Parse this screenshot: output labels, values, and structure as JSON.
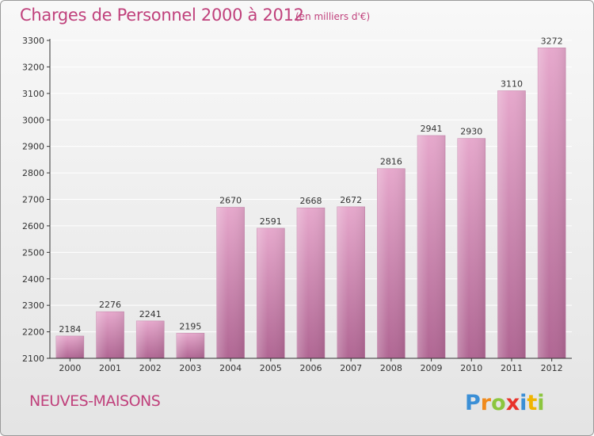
{
  "header": {
    "title": "Charges de Personnel 2000 à 2012",
    "subtitle": "(en milliers d'€)"
  },
  "footer": {
    "commune": "NEUVES-MAISONS",
    "brand": "Proxiti"
  },
  "colors": {
    "bar_top": "#e6a8cc",
    "bar_bottom": "#b06693",
    "title": "#c0417c",
    "axis": "#333333",
    "grid": "#ffffff"
  },
  "chart_data": {
    "type": "bar",
    "categories": [
      "2000",
      "2001",
      "2002",
      "2003",
      "2004",
      "2005",
      "2006",
      "2007",
      "2008",
      "2009",
      "2010",
      "2011",
      "2012"
    ],
    "values": [
      2184,
      2276,
      2241,
      2195,
      2670,
      2591,
      2668,
      2672,
      2816,
      2941,
      2930,
      3110,
      3272
    ],
    "title": "Charges de Personnel 2000 à 2012",
    "ylim": [
      2100,
      3300
    ],
    "yticks": [
      2100,
      2200,
      2300,
      2400,
      2500,
      2600,
      2700,
      2800,
      2900,
      3000,
      3100,
      3200,
      3300
    ],
    "grid": true,
    "data_labels": true
  }
}
